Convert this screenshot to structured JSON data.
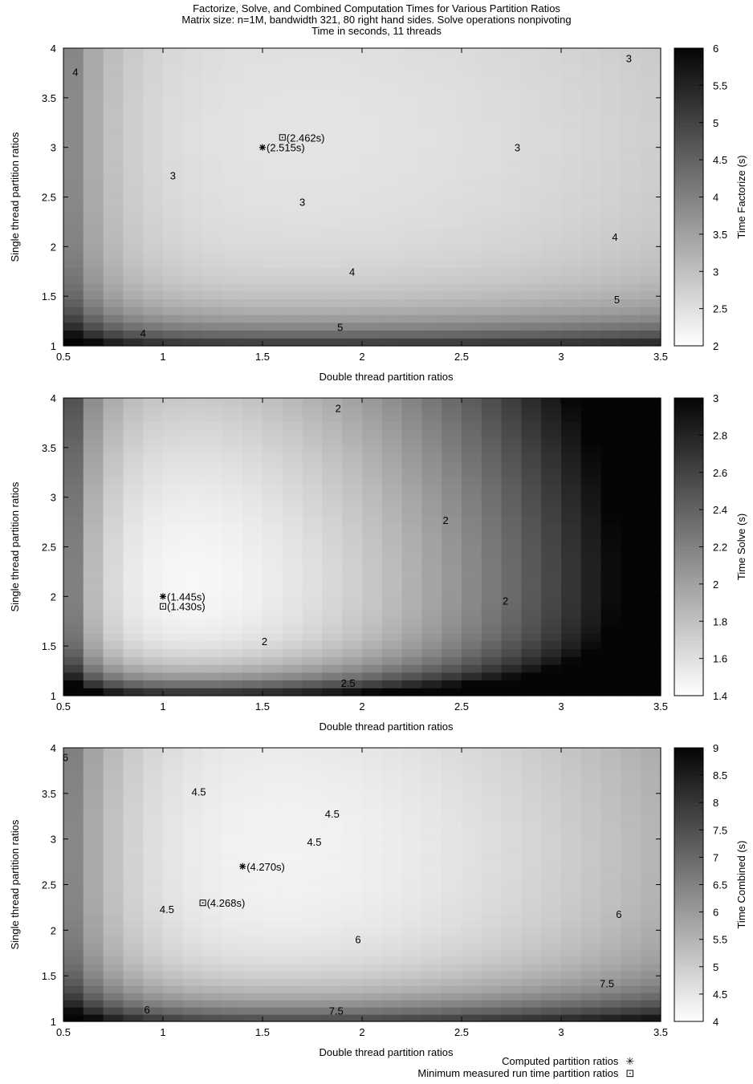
{
  "title": {
    "line1": "Factorize, Solve, and Combined Computation Times for Various Partition Ratios",
    "line2": "Matrix size: n=1M, bandwidth 321, 80 right hand sides. Solve operations nonpivoting",
    "line3": "Time in seconds, 11 threads"
  },
  "legend": {
    "computed_label": "Computed partition ratios",
    "computed_symbol": "✳",
    "measured_label": "Minimum measured run time partition ratios",
    "measured_symbol": "⊡"
  },
  "chart_data": [
    {
      "type": "heatmap",
      "id": "factorize",
      "xlabel": "Double thread partition ratios",
      "ylabel": "Single thread partition ratios",
      "xlim": [
        0.5,
        3.5
      ],
      "ylim": [
        1,
        4
      ],
      "xticks": [
        "0.5",
        "1",
        "1.5",
        "2",
        "2.5",
        "3",
        "3.5"
      ],
      "yticks": [
        "1",
        "1.5",
        "2",
        "2.5",
        "3",
        "3.5",
        "4"
      ],
      "colorbar": {
        "label": "Time Factorize (s)",
        "min": 2,
        "max": 6,
        "ticks": [
          "2",
          "2.5",
          "3",
          "3.5",
          "4",
          "4.5",
          "5",
          "5.5",
          "6"
        ]
      },
      "model": {
        "base": 2.43,
        "cx": 1.6,
        "cy": 3.1,
        "ax": 0.1,
        "ay": 0.08,
        "k": 2.6,
        "c": 0.25,
        "sk": 1.7,
        "sc": 0.2
      },
      "contour_labels": [
        {
          "text": "4",
          "x": 0.56,
          "y": 3.76
        },
        {
          "text": "3",
          "x": 3.34,
          "y": 3.9
        },
        {
          "text": "3",
          "x": 2.78,
          "y": 3.0
        },
        {
          "text": "3",
          "x": 1.05,
          "y": 2.72
        },
        {
          "text": "3",
          "x": 1.7,
          "y": 2.45
        },
        {
          "text": "4",
          "x": 3.27,
          "y": 2.1
        },
        {
          "text": "4",
          "x": 1.95,
          "y": 1.75
        },
        {
          "text": "5",
          "x": 3.28,
          "y": 1.47
        },
        {
          "text": "5",
          "x": 1.89,
          "y": 1.19
        },
        {
          "text": "4",
          "x": 0.9,
          "y": 1.13
        }
      ],
      "points": {
        "computed": {
          "x": 1.5,
          "y": 3.0,
          "label": "(2.515s)"
        },
        "measured": {
          "x": 1.6,
          "y": 3.1,
          "label": "(2.462s)"
        }
      }
    },
    {
      "type": "heatmap",
      "id": "solve",
      "xlabel": "Double thread partition ratios",
      "ylabel": "Single thread partition ratios",
      "xlim": [
        0.5,
        3.5
      ],
      "ylim": [
        1,
        4
      ],
      "xticks": [
        "0.5",
        "1",
        "1.5",
        "2",
        "2.5",
        "3",
        "3.5"
      ],
      "yticks": [
        "1",
        "1.5",
        "2",
        "2.5",
        "3",
        "3.5",
        "4"
      ],
      "colorbar": {
        "label": "Time Solve (s)",
        "min": 1.4,
        "max": 3,
        "ticks": [
          "1.4",
          "1.6",
          "1.8",
          "2",
          "2.2",
          "2.4",
          "2.6",
          "2.8",
          "3"
        ]
      },
      "model": {
        "base": 1.42,
        "cx": 1.0,
        "cy": 1.9,
        "ax": 0.3,
        "ay": 0.07,
        "k": 1.4,
        "c": 0.22,
        "sk": 1.0,
        "sc": 0.15
      },
      "contour_labels": [
        {
          "text": "2",
          "x": 1.88,
          "y": 3.9
        },
        {
          "text": "2",
          "x": 2.42,
          "y": 2.77
        },
        {
          "text": "2",
          "x": 2.72,
          "y": 1.96
        },
        {
          "text": "2",
          "x": 1.51,
          "y": 1.55
        },
        {
          "text": "2.5",
          "x": 3.28,
          "y": 1.45
        },
        {
          "text": "2.5",
          "x": 1.93,
          "y": 1.13
        }
      ],
      "points": {
        "computed": {
          "x": 1.0,
          "y": 2.0,
          "label": "(1.445s)"
        },
        "measured": {
          "x": 1.0,
          "y": 1.9,
          "label": "(1.430s)"
        }
      }
    },
    {
      "type": "heatmap",
      "id": "combined",
      "xlabel": "Double thread partition ratios",
      "ylabel": "Single thread partition ratios",
      "xlim": [
        0.5,
        3.5
      ],
      "ylim": [
        1,
        4
      ],
      "xticks": [
        "0.5",
        "1",
        "1.5",
        "2",
        "2.5",
        "3",
        "3.5"
      ],
      "yticks": [
        "1",
        "1.5",
        "2",
        "2.5",
        "3",
        "3.5",
        "4"
      ],
      "colorbar": {
        "label": "Time Combined (s)",
        "min": 4,
        "max": 9,
        "ticks": [
          "4",
          "4.5",
          "5",
          "5.5",
          "6",
          "6.5",
          "7",
          "7.5",
          "8",
          "8.5",
          "9"
        ]
      },
      "model": {
        "base": 4.2,
        "cx": 1.4,
        "cy": 2.8,
        "ax": 0.3,
        "ay": 0.12,
        "k": 3.2,
        "c": 0.28,
        "sk": 2.4,
        "sc": 0.25
      },
      "contour_labels": [
        {
          "text": "6",
          "x": 0.51,
          "y": 3.9
        },
        {
          "text": "4.5",
          "x": 1.18,
          "y": 3.52
        },
        {
          "text": "4.5",
          "x": 1.85,
          "y": 3.28
        },
        {
          "text": "4.5",
          "x": 1.76,
          "y": 2.97
        },
        {
          "text": "4.5",
          "x": 1.02,
          "y": 2.23
        },
        {
          "text": "6",
          "x": 3.29,
          "y": 2.18
        },
        {
          "text": "6",
          "x": 1.98,
          "y": 1.9
        },
        {
          "text": "7.5",
          "x": 3.23,
          "y": 1.42
        },
        {
          "text": "7.5",
          "x": 1.87,
          "y": 1.12
        },
        {
          "text": "6",
          "x": 0.92,
          "y": 1.13
        }
      ],
      "points": {
        "computed": {
          "x": 1.4,
          "y": 2.7,
          "label": "(4.270s)"
        },
        "measured": {
          "x": 1.2,
          "y": 2.3,
          "label": "(4.268s)"
        }
      }
    }
  ]
}
